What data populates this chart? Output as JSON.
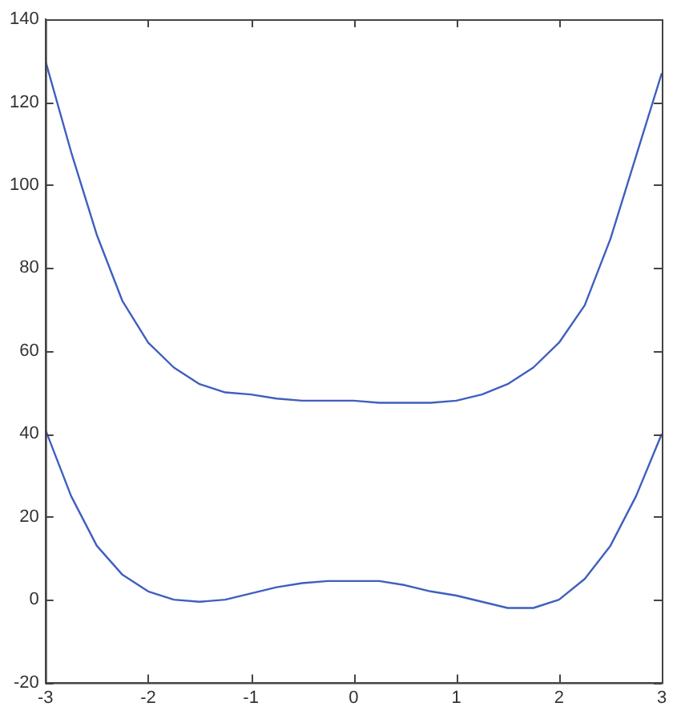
{
  "chart_data": {
    "type": "line",
    "xlim": [
      -3,
      3
    ],
    "xticks": [
      -3,
      -2,
      -1,
      0,
      1,
      2,
      3
    ],
    "ylim": [
      -20,
      140
    ],
    "yticks": [
      -20,
      0,
      20,
      40,
      60,
      80,
      100,
      120,
      140
    ],
    "grid": false,
    "legend": false,
    "marker": "none",
    "line_style": "solid",
    "series": [
      {
        "color": "#3f5fbf",
        "x": [
          -3,
          -2.75,
          -2.5,
          -2.25,
          -2,
          -1.75,
          -1.5,
          -1.25,
          -1,
          -0.75,
          -0.5,
          -0.25,
          0,
          0.25,
          0.5,
          0.75,
          1,
          1.25,
          1.5,
          1.75,
          2,
          2.25,
          2.5,
          2.75,
          3
        ],
        "values": [
          130,
          108,
          88,
          72,
          62,
          56,
          52,
          50,
          49.5,
          48.5,
          48,
          48,
          48,
          47.5,
          47.5,
          47.5,
          48,
          49.5,
          52,
          56,
          62,
          71,
          87,
          107,
          127
        ]
      },
      {
        "color": "#3f5fbf",
        "x": [
          -3,
          -2.75,
          -2.5,
          -2.25,
          -2,
          -1.75,
          -1.5,
          -1.25,
          -1,
          -0.75,
          -0.5,
          -0.25,
          0,
          0.25,
          0.5,
          0.75,
          1,
          1.25,
          1.5,
          1.75,
          2,
          2.25,
          2.5,
          2.75,
          3
        ],
        "values": [
          41,
          25,
          13,
          6,
          2,
          0,
          -0.5,
          0,
          1.5,
          3,
          4,
          4.5,
          4.5,
          4.5,
          3.5,
          2,
          1,
          -0.5,
          -2,
          -2,
          0,
          5,
          13,
          25,
          40
        ]
      }
    ]
  }
}
